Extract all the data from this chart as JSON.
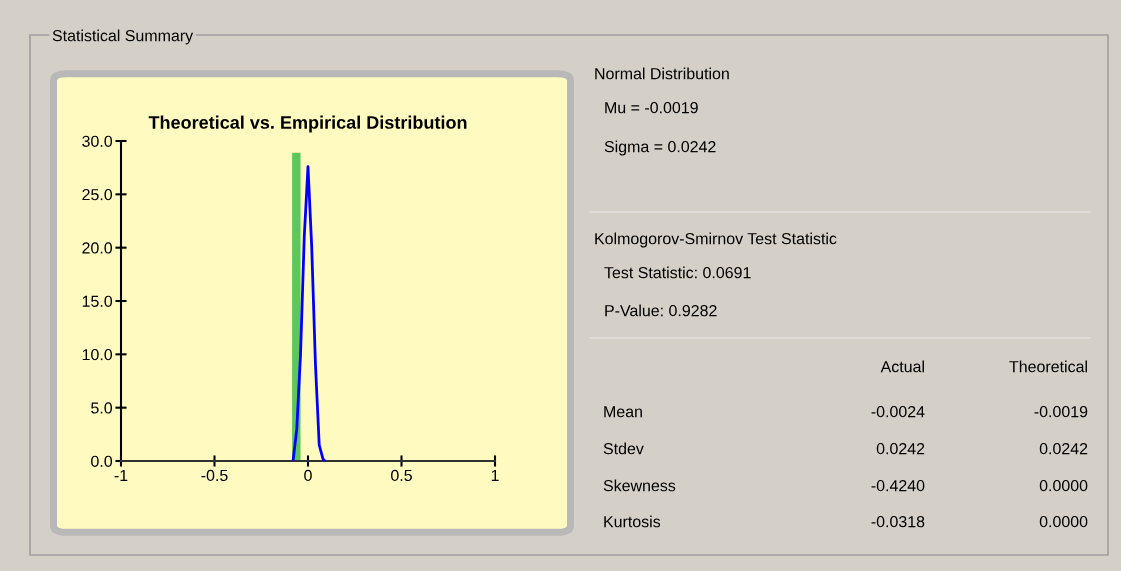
{
  "chart_data": [
    {
      "type": "histogram",
      "title": "Theoretical vs. Empirical Distribution",
      "annotations": [
        "Statistical Summary"
      ],
      "bins": [
        -0.085,
        -0.04
      ],
      "values": [
        28.9
      ],
      "color": "#5cc85c",
      "series": [
        {
          "type": "line",
          "color": "#0000ff",
          "x": [
            -0.08,
            -0.06,
            -0.04,
            -0.02,
            0,
            0.02,
            0.04,
            0.06,
            0.08,
            0.09
          ],
          "values": [
            0,
            3,
            10,
            21,
            27.6,
            20,
            9,
            1.5,
            0.2,
            0
          ]
        }
      ],
      "xlim": [
        -1,
        1
      ],
      "xticks": [
        -1,
        -0.5,
        0,
        0.5,
        1
      ],
      "ylim": [
        0,
        30
      ],
      "yticks": [
        {
          "value": 0,
          "label": "0.0"
        },
        {
          "value": 5,
          "label": "5.0"
        },
        {
          "value": 10,
          "label": "10.0"
        },
        {
          "value": 15,
          "label": "15.0"
        },
        {
          "value": 20,
          "label": "20.0"
        },
        {
          "value": 25,
          "label": "25.0"
        },
        {
          "value": 30,
          "label": "30.0"
        }
      ],
      "grid": false,
      "legend": false
    },
    {
      "type": "other",
      "annotations": [
        "Normal Distribution",
        "Mu = -0.0019",
        "Sigma = 0.0242",
        "Kolmogorov-Smirnov Test Statistic",
        "Test Statistic: 0.0691",
        "P-Value: 0.9282"
      ],
      "categories": [
        "Mean",
        "Stdev",
        "Skewness",
        "Kurtosis"
      ],
      "series": [
        {
          "name": "Actual",
          "values": [
            -0.0024,
            0.0242,
            -0.424,
            -0.0318
          ],
          "value_labels": [
            "-0.0024",
            "0.0242",
            "-0.4240",
            "-0.0318"
          ]
        },
        {
          "name": "Theoretical",
          "values": [
            -0.0019,
            0.0242,
            0.0,
            0.0
          ],
          "value_labels": [
            "-0.0019",
            "0.0242",
            "0.0000",
            "0.0000"
          ]
        }
      ]
    }
  ]
}
